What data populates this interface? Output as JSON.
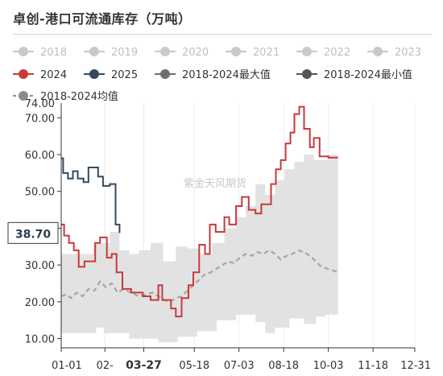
{
  "title": "卓创-港口可流通库存（万吨）",
  "watermark": "紫金天风期货",
  "colors": {
    "s2024": "#c8393b",
    "s2025": "#34495e",
    "band": "#e2e2e2",
    "mean": "#a5a5a5",
    "faded": "#c9c9c9",
    "max_icon": "#6e6e6e",
    "min_icon": "#555555",
    "mean_icon": "#8a8a8a"
  },
  "legend": [
    {
      "label": "2018",
      "state": "hidden"
    },
    {
      "label": "2019",
      "state": "hidden"
    },
    {
      "label": "2020",
      "state": "hidden"
    },
    {
      "label": "2021",
      "state": "hidden"
    },
    {
      "label": "2022",
      "state": "hidden"
    },
    {
      "label": "2023",
      "state": "hidden"
    },
    {
      "label": "2024",
      "state": "shown"
    },
    {
      "label": "2025",
      "state": "shown"
    },
    {
      "label": "2018-2024最大值",
      "state": "shown"
    },
    {
      "label": "2018-2024最小值",
      "state": "shown"
    },
    {
      "label": "2018-2024均值",
      "state": "shown"
    }
  ],
  "chart_data": {
    "type": "line",
    "x_axis": {
      "type": "category-date",
      "range": [
        "01-01",
        "12-31"
      ],
      "tick_labels": [
        "01-01",
        "02-",
        "03-27",
        "05-18",
        "07-03",
        "08-18",
        "10-03",
        "11-18",
        "12-31"
      ],
      "tick_days": [
        0,
        45,
        85,
        137,
        183,
        229,
        275,
        321,
        364
      ],
      "highlight_tick": "03-27"
    },
    "y_axis": {
      "min": 7.5,
      "max": 74.0,
      "tick_values": [
        10,
        20,
        30,
        40,
        50,
        60,
        70
      ],
      "tick_labels": [
        "10.00",
        "20.00",
        "30.00",
        "40.00",
        "50.00",
        "60.00",
        "70.00"
      ],
      "top_label": "74.00"
    },
    "callout": {
      "label": "38.70",
      "value": 38.7
    },
    "series": [
      {
        "name": "2024",
        "role": "line",
        "points": [
          [
            0,
            41
          ],
          [
            3,
            41
          ],
          [
            3,
            38
          ],
          [
            8,
            38
          ],
          [
            8,
            36
          ],
          [
            13,
            36
          ],
          [
            13,
            34
          ],
          [
            18,
            34
          ],
          [
            18,
            29.5
          ],
          [
            24,
            29.5
          ],
          [
            24,
            31
          ],
          [
            35,
            31
          ],
          [
            35,
            36
          ],
          [
            40,
            36
          ],
          [
            40,
            37.5
          ],
          [
            47,
            37.5
          ],
          [
            47,
            32
          ],
          [
            52,
            32
          ],
          [
            52,
            33
          ],
          [
            57,
            33
          ],
          [
            57,
            28
          ],
          [
            63,
            28
          ],
          [
            63,
            23.5
          ],
          [
            72,
            23.5
          ],
          [
            72,
            22.5
          ],
          [
            84,
            22.5
          ],
          [
            84,
            21.5
          ],
          [
            92,
            21.5
          ],
          [
            92,
            20.5
          ],
          [
            100,
            20.5
          ],
          [
            100,
            24.5
          ],
          [
            104,
            24.5
          ],
          [
            104,
            20.5
          ],
          [
            113,
            20.5
          ],
          [
            113,
            18.2
          ],
          [
            118,
            18.2
          ],
          [
            118,
            16
          ],
          [
            124,
            16
          ],
          [
            124,
            21
          ],
          [
            131,
            21
          ],
          [
            131,
            24.5
          ],
          [
            136,
            24.5
          ],
          [
            136,
            28
          ],
          [
            142,
            28
          ],
          [
            142,
            35.5
          ],
          [
            148,
            35.5
          ],
          [
            148,
            33
          ],
          [
            153,
            33
          ],
          [
            153,
            41
          ],
          [
            159,
            41
          ],
          [
            159,
            39
          ],
          [
            168,
            39
          ],
          [
            168,
            43
          ],
          [
            173,
            43
          ],
          [
            173,
            41
          ],
          [
            180,
            41
          ],
          [
            180,
            46
          ],
          [
            186,
            46
          ],
          [
            186,
            48.5
          ],
          [
            193,
            48.5
          ],
          [
            193,
            45
          ],
          [
            200,
            45
          ],
          [
            200,
            44
          ],
          [
            206,
            44
          ],
          [
            206,
            46.5
          ],
          [
            216,
            46.5
          ],
          [
            216,
            52
          ],
          [
            221,
            52
          ],
          [
            221,
            56
          ],
          [
            226,
            56
          ],
          [
            226,
            58.5
          ],
          [
            231,
            58.5
          ],
          [
            231,
            63
          ],
          [
            236,
            63
          ],
          [
            236,
            66
          ],
          [
            240,
            66
          ],
          [
            240,
            71
          ],
          [
            245,
            71
          ],
          [
            245,
            73
          ],
          [
            250,
            73
          ],
          [
            250,
            67
          ],
          [
            256,
            67
          ],
          [
            256,
            62
          ],
          [
            260,
            62
          ],
          [
            260,
            64.5
          ],
          [
            266,
            64.5
          ],
          [
            266,
            59.5
          ],
          [
            275,
            59.5
          ],
          [
            275,
            59.2
          ],
          [
            285,
            59.2
          ]
        ]
      },
      {
        "name": "2025",
        "role": "line",
        "points": [
          [
            0,
            59
          ],
          [
            2,
            59
          ],
          [
            2,
            55
          ],
          [
            7,
            55
          ],
          [
            7,
            53.5
          ],
          [
            12,
            53.5
          ],
          [
            12,
            55.5
          ],
          [
            17,
            55.5
          ],
          [
            17,
            53.5
          ],
          [
            23,
            53.5
          ],
          [
            23,
            52.5
          ],
          [
            28,
            52.5
          ],
          [
            28,
            56.5
          ],
          [
            38,
            56.5
          ],
          [
            38,
            54
          ],
          [
            43,
            54
          ],
          [
            43,
            51.5
          ],
          [
            50,
            51.5
          ],
          [
            50,
            52
          ],
          [
            56,
            52
          ],
          [
            56,
            41
          ],
          [
            60,
            41
          ],
          [
            60,
            38.7
          ]
        ]
      },
      {
        "name": "2018-2024均值",
        "role": "mean",
        "points": [
          [
            0,
            21.5
          ],
          [
            5,
            22
          ],
          [
            10,
            21
          ],
          [
            16,
            22.5
          ],
          [
            22,
            21.5
          ],
          [
            28,
            23.5
          ],
          [
            34,
            23
          ],
          [
            40,
            25.5
          ],
          [
            46,
            24
          ],
          [
            52,
            25
          ],
          [
            58,
            22.5
          ],
          [
            64,
            23.5
          ],
          [
            72,
            22.5
          ],
          [
            80,
            21.5
          ],
          [
            88,
            22
          ],
          [
            94,
            22.5
          ],
          [
            100,
            21.5
          ],
          [
            106,
            20.5
          ],
          [
            112,
            20
          ],
          [
            118,
            21
          ],
          [
            124,
            21.5
          ],
          [
            130,
            23
          ],
          [
            136,
            24.5
          ],
          [
            142,
            26
          ],
          [
            148,
            27.5
          ],
          [
            154,
            28
          ],
          [
            160,
            29
          ],
          [
            166,
            30
          ],
          [
            172,
            31
          ],
          [
            178,
            30.5
          ],
          [
            184,
            32
          ],
          [
            190,
            33
          ],
          [
            196,
            32.5
          ],
          [
            202,
            33.5
          ],
          [
            208,
            33
          ],
          [
            214,
            34
          ],
          [
            220,
            33
          ],
          [
            226,
            31.5
          ],
          [
            232,
            32.5
          ],
          [
            238,
            33
          ],
          [
            244,
            34
          ],
          [
            250,
            33.5
          ],
          [
            256,
            32.5
          ],
          [
            262,
            31
          ],
          [
            268,
            29.5
          ],
          [
            274,
            29
          ],
          [
            280,
            28.5
          ],
          [
            285,
            28
          ]
        ]
      },
      {
        "name": "2018-2024最大值",
        "role": "band-upper",
        "points": [
          [
            0,
            33
          ],
          [
            20,
            33
          ],
          [
            20,
            33
          ],
          [
            33,
            33
          ],
          [
            33,
            36
          ],
          [
            50,
            36
          ],
          [
            50,
            39
          ],
          [
            60,
            39
          ],
          [
            60,
            34
          ],
          [
            70,
            34
          ],
          [
            70,
            33
          ],
          [
            80,
            33
          ],
          [
            80,
            34
          ],
          [
            92,
            34
          ],
          [
            92,
            36
          ],
          [
            105,
            36
          ],
          [
            105,
            31
          ],
          [
            118,
            31
          ],
          [
            118,
            35
          ],
          [
            130,
            35
          ],
          [
            130,
            34.5
          ],
          [
            142,
            34.5
          ],
          [
            142,
            33
          ],
          [
            155,
            33
          ],
          [
            155,
            36
          ],
          [
            168,
            36
          ],
          [
            168,
            40
          ],
          [
            180,
            40
          ],
          [
            180,
            43
          ],
          [
            190,
            43
          ],
          [
            190,
            46
          ],
          [
            200,
            46
          ],
          [
            200,
            52
          ],
          [
            210,
            52
          ],
          [
            210,
            49
          ],
          [
            220,
            49
          ],
          [
            220,
            53
          ],
          [
            230,
            53
          ],
          [
            230,
            56
          ],
          [
            240,
            56
          ],
          [
            240,
            58
          ],
          [
            250,
            58
          ],
          [
            250,
            60
          ],
          [
            260,
            60
          ],
          [
            260,
            58.5
          ],
          [
            275,
            58.5
          ],
          [
            275,
            60
          ],
          [
            285,
            60
          ]
        ]
      },
      {
        "name": "2018-2024最小值",
        "role": "band-lower",
        "points": [
          [
            0,
            11.5
          ],
          [
            36,
            11.5
          ],
          [
            36,
            13
          ],
          [
            44,
            13
          ],
          [
            44,
            11.5
          ],
          [
            70,
            11.5
          ],
          [
            70,
            10
          ],
          [
            100,
            10
          ],
          [
            100,
            9
          ],
          [
            120,
            9
          ],
          [
            120,
            10.5
          ],
          [
            140,
            10.5
          ],
          [
            140,
            12
          ],
          [
            160,
            12
          ],
          [
            160,
            15
          ],
          [
            180,
            15
          ],
          [
            180,
            16.5
          ],
          [
            200,
            16.5
          ],
          [
            200,
            14.5
          ],
          [
            210,
            14.5
          ],
          [
            210,
            11.5
          ],
          [
            220,
            11.5
          ],
          [
            220,
            13
          ],
          [
            235,
            13
          ],
          [
            235,
            15.5
          ],
          [
            250,
            15.5
          ],
          [
            250,
            14
          ],
          [
            262,
            14
          ],
          [
            262,
            16
          ],
          [
            272,
            16
          ],
          [
            272,
            16.5
          ],
          [
            285,
            16.5
          ]
        ]
      }
    ]
  }
}
